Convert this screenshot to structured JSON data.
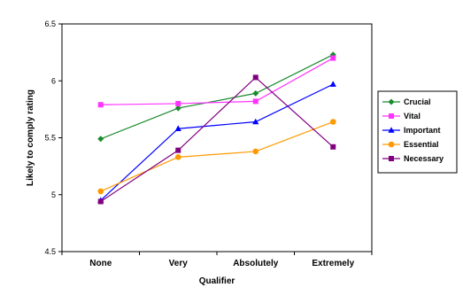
{
  "chart_data": {
    "type": "line",
    "categories": [
      "None",
      "Very",
      "Absolutely",
      "Extremely"
    ],
    "series": [
      {
        "name": "Crucial",
        "values": [
          5.49,
          5.76,
          5.89,
          6.23
        ],
        "color": "#1a8a2e",
        "marker": "diamond"
      },
      {
        "name": "Vital",
        "values": [
          5.79,
          5.8,
          5.82,
          6.2
        ],
        "color": "#ff33ff",
        "marker": "square"
      },
      {
        "name": "Important",
        "values": [
          4.95,
          5.58,
          5.64,
          5.97
        ],
        "color": "#0000ff",
        "marker": "triangle"
      },
      {
        "name": "Essential",
        "values": [
          5.03,
          5.33,
          5.38,
          5.64
        ],
        "color": "#ff9900",
        "marker": "circle"
      },
      {
        "name": "Necessary",
        "values": [
          4.94,
          5.39,
          6.03,
          5.42
        ],
        "color": "#800080",
        "marker": "square"
      }
    ],
    "title": "",
    "xlabel": "Qualifier",
    "ylabel": "Likely to comply rating",
    "ylim": [
      4.5,
      6.5
    ],
    "yticks": [
      "4.5",
      "5",
      "5.5",
      "6",
      "6.5"
    ],
    "grid": false,
    "legend_position": "right"
  }
}
